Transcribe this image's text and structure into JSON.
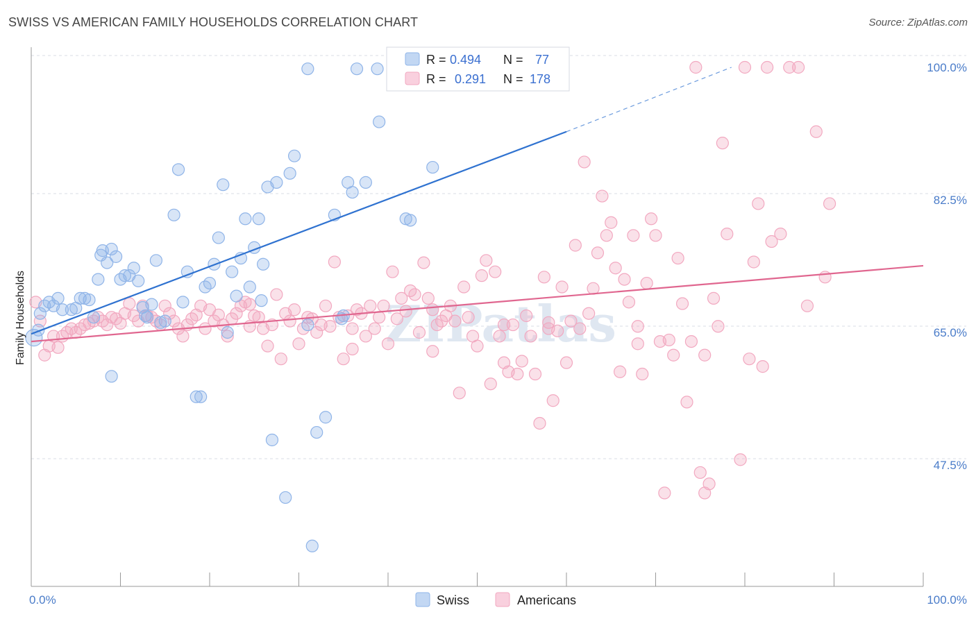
{
  "title": "SWISS VS AMERICAN FAMILY HOUSEHOLDS CORRELATION CHART",
  "source": "Source: ZipAtlas.com",
  "watermark": "ZIPatlas",
  "colors": {
    "swiss": "#8fb4e8",
    "swiss_line": "#2f72d0",
    "americans": "#f2a8c0",
    "americans_line": "#e0668f",
    "axis_text": "#4a7cc9",
    "grid": "#d8dde6"
  },
  "legend": {
    "swiss": {
      "r_label": "R =",
      "r_value": "0.494",
      "n_label": "N =",
      "n_value": "77"
    },
    "americans": {
      "r_label": "R =",
      "r_value": "0.291",
      "n_label": "N =",
      "n_value": "178"
    }
  },
  "bottom_legend": [
    "Swiss",
    "Americans"
  ],
  "chart_data": {
    "type": "scatter",
    "title": "SWISS VS AMERICAN FAMILY HOUSEHOLDS CORRELATION CHART",
    "xlabel": "",
    "ylabel": "Family Households",
    "xlim": [
      0,
      100
    ],
    "ylim": [
      35,
      101.5
    ],
    "x_tick_labels": [
      "0.0%",
      "100.0%"
    ],
    "y_ticks": [
      47.5,
      65.0,
      82.5,
      100.0
    ],
    "y_tick_labels": [
      "47.5%",
      "65.0%",
      "82.5%",
      "100.0%"
    ],
    "grid": true,
    "legend_position": "top-center",
    "series": [
      {
        "name": "Swiss",
        "R": 0.494,
        "N": 77,
        "trend": {
          "x0": 0,
          "y0": 64.8,
          "x1": 60,
          "y1": 91.5,
          "dash_to_x": 78.5,
          "dash_to_y": 100
        },
        "points": [
          [
            0.3,
            64.3
          ],
          [
            0.8,
            65.3
          ],
          [
            1.0,
            67.5
          ],
          [
            1.5,
            68.5
          ],
          [
            2.0,
            69.0
          ],
          [
            2.5,
            68.5
          ],
          [
            3.0,
            69.5
          ],
          [
            3.5,
            68.0
          ],
          [
            4.5,
            68.0
          ],
          [
            5.5,
            69.5
          ],
          [
            6.0,
            69.5
          ],
          [
            6.5,
            69.3
          ],
          [
            7.0,
            67.0
          ],
          [
            7.5,
            72.0
          ],
          [
            7.8,
            75.2
          ],
          [
            8.0,
            75.8
          ],
          [
            8.5,
            74.2
          ],
          [
            9.0,
            76.0
          ],
          [
            9.5,
            75.0
          ],
          [
            10.0,
            72.0
          ],
          [
            10.5,
            72.5
          ],
          [
            11.0,
            72.5
          ],
          [
            11.5,
            73.5
          ],
          [
            12.0,
            71.8
          ],
          [
            12.5,
            68.3
          ],
          [
            13.0,
            67.0
          ],
          [
            13.5,
            68.7
          ],
          [
            14.0,
            74.5
          ],
          [
            15.0,
            66.5
          ],
          [
            16.0,
            80.5
          ],
          [
            16.5,
            86.5
          ],
          [
            17.0,
            69.0
          ],
          [
            17.5,
            73.0
          ],
          [
            18.5,
            56.5
          ],
          [
            19.0,
            56.5
          ],
          [
            19.5,
            71.0
          ],
          [
            20.0,
            71.5
          ],
          [
            20.5,
            74.0
          ],
          [
            21.0,
            77.5
          ],
          [
            21.5,
            84.5
          ],
          [
            22.0,
            65.0
          ],
          [
            22.5,
            73.0
          ],
          [
            23.0,
            69.8
          ],
          [
            23.5,
            74.8
          ],
          [
            24.0,
            80.0
          ],
          [
            24.5,
            71.0
          ],
          [
            25.0,
            76.2
          ],
          [
            25.5,
            80.0
          ],
          [
            26.0,
            74.0
          ],
          [
            26.5,
            84.2
          ],
          [
            27.0,
            50.8
          ],
          [
            27.5,
            84.8
          ],
          [
            28.5,
            43.2
          ],
          [
            29.0,
            86.0
          ],
          [
            29.5,
            88.3
          ],
          [
            31.0,
            99.8
          ],
          [
            31.5,
            36.8
          ],
          [
            32.0,
            51.8
          ],
          [
            33.0,
            53.8
          ],
          [
            34.0,
            80.5
          ],
          [
            35.0,
            67.2
          ],
          [
            35.5,
            84.8
          ],
          [
            36.0,
            83.5
          ],
          [
            36.5,
            99.8
          ],
          [
            37.5,
            84.8
          ],
          [
            39.0,
            92.8
          ],
          [
            42.0,
            80.0
          ],
          [
            42.5,
            79.8
          ],
          [
            45.0,
            86.8
          ],
          [
            5.0,
            68.2
          ],
          [
            9.0,
            59.2
          ],
          [
            12.8,
            67.2
          ],
          [
            14.5,
            66.3
          ],
          [
            25.8,
            69.2
          ],
          [
            31.0,
            66.0
          ],
          [
            34.8,
            66.8
          ],
          [
            38.8,
            99.8
          ]
        ]
      },
      {
        "name": "Americans",
        "R": 0.291,
        "N": 178,
        "trend": {
          "x0": 0,
          "y0": 63.8,
          "x1": 100,
          "y1": 73.8
        },
        "points": [
          [
            0.5,
            69.0
          ],
          [
            1.0,
            66.5
          ],
          [
            1.5,
            62.0
          ],
          [
            2.0,
            63.2
          ],
          [
            2.5,
            64.5
          ],
          [
            3.0,
            63.0
          ],
          [
            3.5,
            64.5
          ],
          [
            4.0,
            65.0
          ],
          [
            4.5,
            65.5
          ],
          [
            5.0,
            65.0
          ],
          [
            5.5,
            65.5
          ],
          [
            6.0,
            66.0
          ],
          [
            6.5,
            66.2
          ],
          [
            7.0,
            66.5
          ],
          [
            7.5,
            67.0
          ],
          [
            8.0,
            66.5
          ],
          [
            8.5,
            66.0
          ],
          [
            9.0,
            67.0
          ],
          [
            9.5,
            66.8
          ],
          [
            10.0,
            66.2
          ],
          [
            10.5,
            67.5
          ],
          [
            11.0,
            68.8
          ],
          [
            11.5,
            67.2
          ],
          [
            12.0,
            66.5
          ],
          [
            12.5,
            68.5
          ],
          [
            13.0,
            67.2
          ],
          [
            13.5,
            67.0
          ],
          [
            14.0,
            66.5
          ],
          [
            14.5,
            66.0
          ],
          [
            15.0,
            68.5
          ],
          [
            15.5,
            67.5
          ],
          [
            16.0,
            66.5
          ],
          [
            16.5,
            65.5
          ],
          [
            17.0,
            64.5
          ],
          [
            17.5,
            66.0
          ],
          [
            18.0,
            66.8
          ],
          [
            18.5,
            67.3
          ],
          [
            19.0,
            68.5
          ],
          [
            19.5,
            65.5
          ],
          [
            20.0,
            68.0
          ],
          [
            20.5,
            66.5
          ],
          [
            21.0,
            67.3
          ],
          [
            21.5,
            66.0
          ],
          [
            22.0,
            64.5
          ],
          [
            22.5,
            66.8
          ],
          [
            23.0,
            67.5
          ],
          [
            23.5,
            68.5
          ],
          [
            24.0,
            69.0
          ],
          [
            24.5,
            68.7
          ],
          [
            25.0,
            67.2
          ],
          [
            25.5,
            67.0
          ],
          [
            26.0,
            65.5
          ],
          [
            26.5,
            63.2
          ],
          [
            27.0,
            66.0
          ],
          [
            27.5,
            70.0
          ],
          [
            28.0,
            61.5
          ],
          [
            28.5,
            67.5
          ],
          [
            29.0,
            66.5
          ],
          [
            29.5,
            68.0
          ],
          [
            30.0,
            63.5
          ],
          [
            30.5,
            65.5
          ],
          [
            31.0,
            67.0
          ],
          [
            31.5,
            66.8
          ],
          [
            32.0,
            65.0
          ],
          [
            32.5,
            66.0
          ],
          [
            33.0,
            68.5
          ],
          [
            33.5,
            65.8
          ],
          [
            34.0,
            74.3
          ],
          [
            34.5,
            67.0
          ],
          [
            35.0,
            61.5
          ],
          [
            35.5,
            67.2
          ],
          [
            36.0,
            65.5
          ],
          [
            36.5,
            68.0
          ],
          [
            37.0,
            67.5
          ],
          [
            37.5,
            64.5
          ],
          [
            38.0,
            68.5
          ],
          [
            38.5,
            65.5
          ],
          [
            39.0,
            67.0
          ],
          [
            39.5,
            68.5
          ],
          [
            40.0,
            63.5
          ],
          [
            40.5,
            73.0
          ],
          [
            41.0,
            66.8
          ],
          [
            41.5,
            69.5
          ],
          [
            42.0,
            67.8
          ],
          [
            42.5,
            70.5
          ],
          [
            43.0,
            70.0
          ],
          [
            43.5,
            65.0
          ],
          [
            44.0,
            74.2
          ],
          [
            44.5,
            69.5
          ],
          [
            45.0,
            68.0
          ],
          [
            45.5,
            66.0
          ],
          [
            46.0,
            66.5
          ],
          [
            46.5,
            67.2
          ],
          [
            47.0,
            68.5
          ],
          [
            47.5,
            66.5
          ],
          [
            48.0,
            57.0
          ],
          [
            48.5,
            71.0
          ],
          [
            49.0,
            67.0
          ],
          [
            49.5,
            64.5
          ],
          [
            50.0,
            63.2
          ],
          [
            50.5,
            72.5
          ],
          [
            51.0,
            74.5
          ],
          [
            51.5,
            58.2
          ],
          [
            52.0,
            73.0
          ],
          [
            52.5,
            64.5
          ],
          [
            53.0,
            66.0
          ],
          [
            53.5,
            59.8
          ],
          [
            54.0,
            66.0
          ],
          [
            54.5,
            59.5
          ],
          [
            55.0,
            61.2
          ],
          [
            55.5,
            67.2
          ],
          [
            56.0,
            64.5
          ],
          [
            56.5,
            59.5
          ],
          [
            57.0,
            53.0
          ],
          [
            57.5,
            72.3
          ],
          [
            58.0,
            65.5
          ],
          [
            58.5,
            56.0
          ],
          [
            59.0,
            65.2
          ],
          [
            59.5,
            71.0
          ],
          [
            60.0,
            61.0
          ],
          [
            60.5,
            66.5
          ],
          [
            61.0,
            76.5
          ],
          [
            61.5,
            65.5
          ],
          [
            62.0,
            87.5
          ],
          [
            62.5,
            67.5
          ],
          [
            63.0,
            70.8
          ],
          [
            63.5,
            75.5
          ],
          [
            64.0,
            83.0
          ],
          [
            64.5,
            77.8
          ],
          [
            65.0,
            79.5
          ],
          [
            65.5,
            73.5
          ],
          [
            66.0,
            59.8
          ],
          [
            66.5,
            72.0
          ],
          [
            67.0,
            69.0
          ],
          [
            67.5,
            77.8
          ],
          [
            68.0,
            65.8
          ],
          [
            68.5,
            59.5
          ],
          [
            69.0,
            71.5
          ],
          [
            69.5,
            80.0
          ],
          [
            70.0,
            77.8
          ],
          [
            70.5,
            63.8
          ],
          [
            71.0,
            43.8
          ],
          [
            71.5,
            64.0
          ],
          [
            72.0,
            62.0
          ],
          [
            72.5,
            74.8
          ],
          [
            73.0,
            68.8
          ],
          [
            73.5,
            55.8
          ],
          [
            74.0,
            63.8
          ],
          [
            74.5,
            100.0
          ],
          [
            75.0,
            46.5
          ],
          [
            75.5,
            43.8
          ],
          [
            76.0,
            45.0
          ],
          [
            76.5,
            69.5
          ],
          [
            77.0,
            65.8
          ],
          [
            77.5,
            90.0
          ],
          [
            78.0,
            78.0
          ],
          [
            79.5,
            48.2
          ],
          [
            80.0,
            100.0
          ],
          [
            80.5,
            61.5
          ],
          [
            81.0,
            74.3
          ],
          [
            81.5,
            82.0
          ],
          [
            82.0,
            60.5
          ],
          [
            82.5,
            100.0
          ],
          [
            83.0,
            77.0
          ],
          [
            84.0,
            78.0
          ],
          [
            85.0,
            100.0
          ],
          [
            86.0,
            100.0
          ],
          [
            87.0,
            68.5
          ],
          [
            88.0,
            91.5
          ],
          [
            89.0,
            72.3
          ],
          [
            89.5,
            82.0
          ],
          [
            75.5,
            62.0
          ],
          [
            68.0,
            63.5
          ],
          [
            45.0,
            62.5
          ],
          [
            53.0,
            61.0
          ],
          [
            36.0,
            62.8
          ],
          [
            24.5,
            65.8
          ],
          [
            58.0,
            66.3
          ]
        ]
      }
    ]
  }
}
